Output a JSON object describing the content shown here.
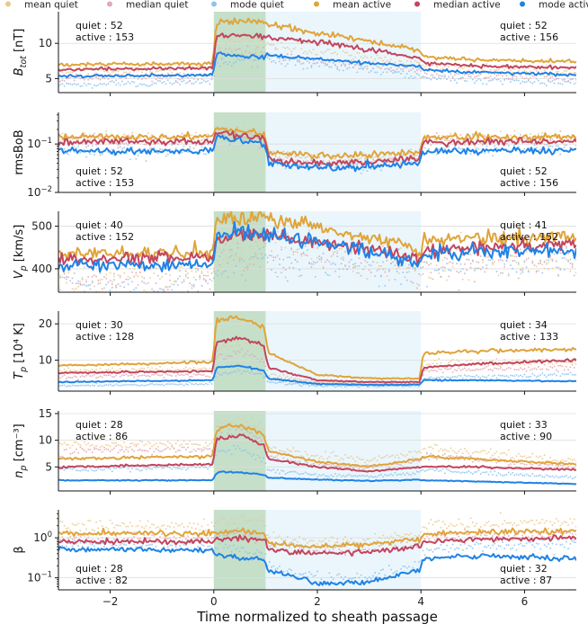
{
  "chart_data": {
    "type": "line",
    "xlabel": "Time normalized to sheath passage",
    "xlim": [
      -3,
      7
    ],
    "x_ticks": [
      -2,
      0,
      2,
      4,
      6
    ],
    "regions": [
      {
        "name": "sheath",
        "x": [
          0,
          1
        ],
        "color": "#2e8b3e"
      },
      {
        "name": "ejecta",
        "x": [
          1,
          4
        ],
        "color": "#bfe3f7"
      }
    ],
    "legend": [
      {
        "label": "mean quiet",
        "color": "#eac991",
        "style": "dots"
      },
      {
        "label": "median quiet",
        "color": "#e2a8b4",
        "style": "dots"
      },
      {
        "label": "mode quiet",
        "color": "#8ec3ef",
        "style": "dots"
      },
      {
        "label": "mean active",
        "color": "#e0a43a",
        "style": "line"
      },
      {
        "label": "median active",
        "color": "#c3455e",
        "style": "line"
      },
      {
        "label": "mode active",
        "color": "#1f82e6",
        "style": "line"
      }
    ],
    "panels": [
      {
        "ylabel": "B_tot [nT]",
        "ylabel_main": "B",
        "ylabel_sub": "tot",
        "ylabel_unit": " [nT]",
        "scale": "linear",
        "ylim": [
          3,
          14.5
        ],
        "ticks": [
          {
            "v": 5,
            "label": "5"
          },
          {
            "v": 10,
            "label": "10"
          }
        ],
        "annot_left": [
          "quiet : 52",
          "active : 153"
        ],
        "annot_left_pos": "top",
        "annot_right": [
          "quiet : 52",
          "active : 156"
        ],
        "annot_right_pos": "top",
        "keyframes": [
          -3,
          -0.02,
          0.05,
          0.5,
          0.97,
          1.05,
          2,
          3,
          3.97,
          4.05,
          5,
          7
        ],
        "series": {
          "mean active": [
            7.0,
            7.1,
            12.8,
            13.3,
            13.0,
            12.8,
            11.5,
            10.3,
            9.0,
            8.2,
            7.7,
            7.4
          ],
          "median active": [
            6.3,
            6.5,
            11.0,
            11.2,
            10.8,
            10.9,
            10.2,
            9.1,
            7.9,
            7.2,
            6.8,
            6.5
          ],
          "mode active": [
            5.3,
            5.5,
            8.5,
            8.2,
            8.0,
            8.4,
            7.7,
            7.2,
            6.7,
            6.2,
            5.9,
            5.5
          ],
          "mean quiet": [
            6.0,
            6.3,
            10.3,
            10.5,
            10.0,
            9.7,
            8.9,
            8.1,
            7.0,
            6.7,
            6.3,
            6.0
          ],
          "median quiet": [
            5.0,
            5.3,
            8.7,
            8.9,
            8.5,
            8.3,
            7.6,
            6.8,
            5.9,
            5.7,
            5.4,
            5.1
          ],
          "mode quiet": [
            4.0,
            4.6,
            7.0,
            7.4,
            7.5,
            7.6,
            7.0,
            6.3,
            5.4,
            5.2,
            4.8,
            4.5
          ]
        }
      },
      {
        "ylabel": "rmsBoB",
        "ylabel_main": "rmsBoB",
        "ylabel_sub": "",
        "ylabel_unit": "",
        "scale": "log",
        "ylim": [
          0.01,
          0.45
        ],
        "ticks": [
          {
            "v": 0.01,
            "label": "10",
            "sup": "−2"
          },
          {
            "v": 0.1,
            "label": "10",
            "sup": "−1"
          }
        ],
        "annot_left": [
          "quiet : 52",
          "active : 153"
        ],
        "annot_left_pos": "bottom",
        "annot_right": [
          "quiet : 52",
          "active : 156"
        ],
        "annot_right_pos": "bottom",
        "keyframes": [
          -3,
          -0.02,
          0.05,
          0.5,
          0.97,
          1.05,
          2,
          3,
          3.97,
          4.05,
          5,
          7
        ],
        "series": {
          "mean active": [
            0.14,
            0.14,
            0.21,
            0.19,
            0.16,
            0.065,
            0.058,
            0.06,
            0.068,
            0.14,
            0.14,
            0.14
          ],
          "median active": [
            0.11,
            0.11,
            0.17,
            0.15,
            0.13,
            0.048,
            0.04,
            0.042,
            0.05,
            0.11,
            0.11,
            0.11
          ],
          "mode active": [
            0.07,
            0.07,
            0.14,
            0.12,
            0.1,
            0.04,
            0.032,
            0.034,
            0.04,
            0.07,
            0.07,
            0.075
          ],
          "mean quiet": [
            0.13,
            0.13,
            0.19,
            0.17,
            0.15,
            0.06,
            0.05,
            0.052,
            0.06,
            0.13,
            0.13,
            0.13
          ],
          "median quiet": [
            0.12,
            0.12,
            0.17,
            0.15,
            0.13,
            0.05,
            0.042,
            0.044,
            0.05,
            0.12,
            0.12,
            0.12
          ],
          "mode quiet": [
            0.07,
            0.075,
            0.15,
            0.13,
            0.11,
            0.045,
            0.035,
            0.036,
            0.045,
            0.075,
            0.08,
            0.085
          ]
        }
      },
      {
        "ylabel": "V_p [km/s]",
        "ylabel_main": "V",
        "ylabel_sub": "p",
        "ylabel_unit": " [km/s]",
        "scale": "linear",
        "ylim": [
          345,
          535
        ],
        "ticks": [
          {
            "v": 400,
            "label": "400"
          },
          {
            "v": 500,
            "label": "500"
          }
        ],
        "annot_left": [
          "quiet : 40",
          "active : 152"
        ],
        "annot_left_pos": "top",
        "annot_right": [
          "quiet : 41",
          "active : 152"
        ],
        "annot_right_pos": "top",
        "keyframes": [
          -3,
          -0.02,
          0.05,
          0.5,
          0.97,
          1.05,
          2,
          3,
          3.97,
          4.05,
          5,
          7
        ],
        "series": {
          "mean active": [
            437,
            437,
            515,
            520,
            518,
            516,
            500,
            475,
            447,
            465,
            472,
            476
          ],
          "median active": [
            422,
            427,
            473,
            480,
            478,
            478,
            462,
            445,
            425,
            445,
            450,
            457
          ],
          "mode active": [
            408,
            410,
            478,
            483,
            482,
            480,
            465,
            438,
            412,
            432,
            438,
            443
          ],
          "mean quiet": [
            380,
            385,
            425,
            450,
            462,
            462,
            445,
            423,
            405,
            415,
            420,
            425
          ],
          "median quiet": [
            368,
            376,
            416,
            420,
            420,
            422,
            418,
            408,
            400,
            410,
            415,
            418
          ],
          "mode quiet": [
            355,
            362,
            395,
            410,
            420,
            422,
            412,
            405,
            395,
            405,
            408,
            412
          ]
        }
      },
      {
        "ylabel": "T_p [10^4 K]",
        "ylabel_main": "T",
        "ylabel_sub": "p",
        "ylabel_unit": " [10⁴ K]",
        "scale": "linear",
        "ylim": [
          1.5,
          23.5
        ],
        "ticks": [
          {
            "v": 10,
            "label": "10"
          },
          {
            "v": 20,
            "label": "20"
          }
        ],
        "annot_left": [
          "quiet : 30",
          "active : 128"
        ],
        "annot_left_pos": "top",
        "annot_right": [
          "quiet : 34",
          "active : 133"
        ],
        "annot_right_pos": "top",
        "keyframes": [
          -3,
          -0.02,
          0.05,
          0.5,
          0.97,
          1.05,
          2,
          3,
          3.97,
          4.05,
          5,
          7
        ],
        "series": {
          "mean active": [
            8.5,
            9.5,
            21.0,
            22.0,
            19.0,
            12.0,
            6.0,
            5.0,
            5.0,
            12.0,
            12.5,
            13.0
          ],
          "median active": [
            6.5,
            7.0,
            15.0,
            16.0,
            14.0,
            8.0,
            4.5,
            4.0,
            4.0,
            8.0,
            9.0,
            10.0
          ],
          "mode active": [
            4.0,
            4.5,
            8.0,
            8.5,
            7.0,
            5.0,
            3.5,
            3.2,
            3.3,
            4.5,
            4.5,
            4.2
          ],
          "mean quiet": [
            7.0,
            7.5,
            13.0,
            15.0,
            13.0,
            6.0,
            4.0,
            3.8,
            4.0,
            9.0,
            9.5,
            9.5
          ],
          "median quiet": [
            5.5,
            6.0,
            11.0,
            12.0,
            10.0,
            5.0,
            3.5,
            3.4,
            3.5,
            7.0,
            7.5,
            8.0
          ],
          "mode quiet": [
            3.0,
            3.5,
            6.0,
            7.0,
            6.0,
            4.0,
            3.0,
            2.9,
            3.0,
            5.0,
            5.5,
            6.0
          ]
        }
      },
      {
        "ylabel": "n_p [cm^-3]",
        "ylabel_main": "n",
        "ylabel_sub": "p",
        "ylabel_unit": " [cm⁻³]",
        "scale": "linear",
        "ylim": [
          0.5,
          15.5
        ],
        "ticks": [
          {
            "v": 5,
            "label": "5"
          },
          {
            "v": 10,
            "label": "10"
          },
          {
            "v": 15,
            "label": "15"
          }
        ],
        "annot_left": [
          "quiet : 28",
          "active : 86"
        ],
        "annot_left_pos": "top",
        "annot_right": [
          "quiet : 33",
          "active : 90"
        ],
        "annot_right_pos": "top",
        "keyframes": [
          -3,
          -0.02,
          0.05,
          0.5,
          0.97,
          1.05,
          2,
          3,
          3.97,
          4.05,
          5,
          7
        ],
        "series": {
          "mean active": [
            6.5,
            7.0,
            12.0,
            13.0,
            11.0,
            8.0,
            6.0,
            5.0,
            6.5,
            7.0,
            6.5,
            5.5
          ],
          "median active": [
            5.0,
            5.5,
            10.0,
            11.0,
            9.0,
            6.5,
            5.0,
            4.2,
            5.0,
            5.0,
            5.0,
            4.5
          ],
          "mode active": [
            2.5,
            2.5,
            4.0,
            4.0,
            3.5,
            3.0,
            2.6,
            2.4,
            2.6,
            2.5,
            2.3,
            1.8
          ],
          "mean quiet": [
            9.0,
            9.5,
            13.0,
            13.5,
            12.0,
            8.5,
            7.0,
            6.5,
            7.5,
            8.5,
            8.0,
            6.0
          ],
          "median quiet": [
            8.0,
            8.5,
            11.5,
            12.0,
            10.5,
            7.0,
            5.5,
            5.0,
            6.0,
            7.0,
            6.5,
            5.0
          ],
          "mode quiet": [
            4.5,
            5.0,
            8.0,
            8.5,
            6.0,
            4.5,
            3.5,
            3.2,
            4.0,
            4.5,
            4.0,
            3.0
          ]
        }
      },
      {
        "ylabel": "β",
        "ylabel_main": "β",
        "ylabel_sub": "",
        "ylabel_unit": "",
        "scale": "log",
        "ylim": [
          0.05,
          5.0
        ],
        "ticks": [
          {
            "v": 0.1,
            "label": "10",
            "sup": "−1"
          },
          {
            "v": 1,
            "label": "10",
            "sup": "0"
          }
        ],
        "annot_left": [
          "quiet : 28",
          "active : 82"
        ],
        "annot_left_pos": "bottom",
        "annot_right": [
          "quiet : 32",
          "active : 87"
        ],
        "annot_right_pos": "bottom",
        "keyframes": [
          -3,
          -0.02,
          0.05,
          0.5,
          0.97,
          1.05,
          2,
          3,
          3.97,
          4.05,
          5,
          7
        ],
        "series": {
          "mean active": [
            1.3,
            1.3,
            1.4,
            1.5,
            1.3,
            0.7,
            0.6,
            0.7,
            0.9,
            1.2,
            1.4,
            1.5
          ],
          "median active": [
            0.8,
            0.8,
            0.9,
            0.95,
            0.85,
            0.5,
            0.4,
            0.45,
            0.6,
            0.8,
            0.9,
            1.0
          ],
          "mode active": [
            0.5,
            0.5,
            0.4,
            0.3,
            0.3,
            0.15,
            0.07,
            0.08,
            0.15,
            0.3,
            0.35,
            0.3
          ],
          "mean quiet": [
            2.0,
            2.0,
            2.5,
            2.8,
            2.5,
            1.0,
            0.8,
            0.9,
            1.2,
            2.0,
            2.2,
            2.5
          ],
          "median quiet": [
            1.0,
            1.0,
            1.2,
            1.3,
            1.1,
            0.6,
            0.5,
            0.55,
            0.7,
            1.0,
            1.1,
            1.2
          ],
          "mode quiet": [
            0.7,
            0.6,
            0.6,
            0.5,
            0.4,
            0.2,
            0.1,
            0.1,
            0.2,
            0.5,
            0.6,
            0.7
          ]
        }
      }
    ]
  }
}
